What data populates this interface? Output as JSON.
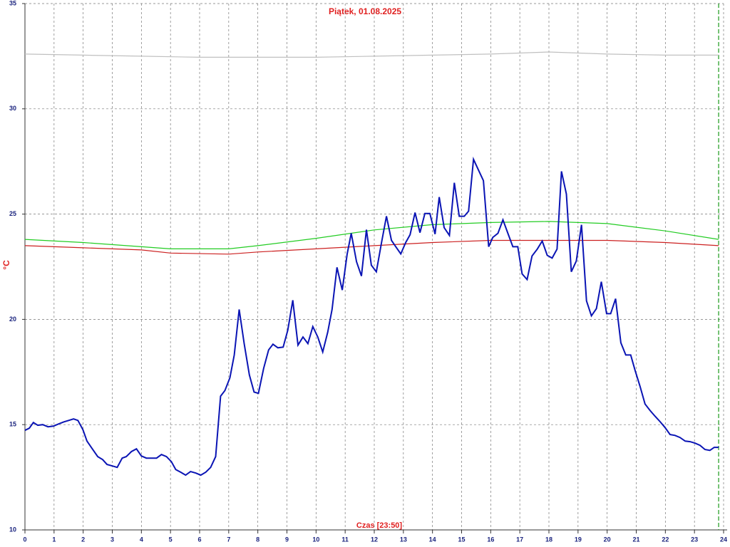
{
  "chart_data": {
    "type": "line",
    "title": "Piątek, 01.08.2025",
    "y_label": "°C",
    "x_label": "Czas [23:50]",
    "xlim": [
      0,
      24
    ],
    "xticks": [
      0,
      1,
      2,
      3,
      4,
      5,
      6,
      7,
      8,
      9,
      10,
      11,
      12,
      13,
      14,
      15,
      16,
      17,
      18,
      19,
      20,
      21,
      22,
      23,
      24
    ],
    "ylim": [
      10,
      35
    ],
    "yticks": [
      10,
      15,
      20,
      25,
      30,
      35
    ],
    "grid": true,
    "marker_x": 23.83,
    "marker_color": "#1a9a1a",
    "series": [
      {
        "color": "#c0c0c0",
        "x": [
          0,
          2,
          4,
          6,
          8,
          10,
          12,
          14,
          16,
          18,
          20,
          22,
          23.83
        ],
        "values": [
          32.6,
          32.55,
          32.5,
          32.45,
          32.45,
          32.45,
          32.5,
          32.55,
          32.6,
          32.7,
          32.6,
          32.55,
          32.55
        ]
      },
      {
        "color": "#22cc22",
        "x": [
          0,
          2,
          4,
          5,
          7,
          8,
          10,
          12,
          14,
          16,
          18,
          20,
          22,
          23.83
        ],
        "values": [
          23.8,
          23.65,
          23.45,
          23.35,
          23.35,
          23.5,
          23.85,
          24.25,
          24.5,
          24.6,
          24.65,
          24.55,
          24.2,
          23.8
        ]
      },
      {
        "color": "#cc2020",
        "x": [
          0,
          2,
          4,
          5,
          7,
          8,
          10,
          12,
          14,
          16,
          18,
          20,
          22,
          23.83
        ],
        "values": [
          23.5,
          23.4,
          23.3,
          23.15,
          23.1,
          23.2,
          23.35,
          23.5,
          23.65,
          23.75,
          23.75,
          23.75,
          23.65,
          23.5
        ]
      },
      {
        "color": "#0a14b4",
        "x": [
          0,
          0.15,
          0.29,
          0.44,
          0.61,
          0.79,
          0.98,
          1.15,
          1.33,
          1.5,
          1.67,
          1.82,
          1.99,
          2.13,
          2.33,
          2.5,
          2.67,
          2.82,
          2.99,
          3.17,
          3.34,
          3.48,
          3.66,
          3.83,
          4.0,
          4.17,
          4.32,
          4.52,
          4.69,
          4.86,
          5.03,
          5.18,
          5.35,
          5.52,
          5.69,
          5.87,
          6.04,
          6.21,
          6.38,
          6.55,
          6.72,
          6.87,
          7.04,
          7.19,
          7.36,
          7.53,
          7.71,
          7.87,
          8.02,
          8.2,
          8.37,
          8.52,
          8.69,
          8.87,
          9.03,
          9.2,
          9.38,
          9.55,
          9.72,
          9.89,
          10.06,
          10.23,
          10.4,
          10.55,
          10.72,
          10.9,
          11.07,
          11.21,
          11.39,
          11.56,
          11.73,
          11.9,
          12.07,
          12.25,
          12.42,
          12.59,
          12.74,
          12.91,
          13.08,
          13.23,
          13.4,
          13.57,
          13.74,
          13.91,
          14.09,
          14.23,
          14.4,
          14.58,
          14.75,
          14.92,
          15.09,
          15.24,
          15.41,
          15.58,
          15.75,
          15.93,
          16.07,
          16.25,
          16.42,
          16.59,
          16.76,
          16.93,
          17.08,
          17.25,
          17.42,
          17.6,
          17.77,
          17.94,
          18.11,
          18.28,
          18.43,
          18.6,
          18.77,
          18.94,
          19.12,
          19.29,
          19.46,
          19.63,
          19.8,
          19.98,
          20.12,
          20.29,
          20.47,
          20.64,
          20.81,
          20.96,
          21.13,
          21.3,
          21.47,
          21.64,
          21.82,
          21.99,
          22.16,
          22.33,
          22.5,
          22.68,
          22.85,
          23.02,
          23.19,
          23.36,
          23.53,
          23.68,
          23.83
        ],
        "values": [
          14.73,
          14.83,
          15.1,
          14.97,
          15.0,
          14.9,
          14.93,
          15.03,
          15.13,
          15.2,
          15.27,
          15.2,
          14.76,
          14.22,
          13.82,
          13.48,
          13.34,
          13.11,
          13.04,
          12.97,
          13.41,
          13.48,
          13.72,
          13.85,
          13.51,
          13.41,
          13.41,
          13.41,
          13.58,
          13.48,
          13.24,
          12.87,
          12.74,
          12.6,
          12.77,
          12.7,
          12.6,
          12.74,
          12.97,
          13.48,
          16.35,
          16.62,
          17.23,
          18.31,
          20.47,
          18.85,
          17.36,
          16.55,
          16.49,
          17.67,
          18.55,
          18.82,
          18.65,
          18.68,
          19.49,
          20.91,
          18.78,
          19.16,
          18.85,
          19.66,
          19.16,
          18.45,
          19.39,
          20.47,
          22.47,
          21.39,
          23.11,
          24.09,
          22.74,
          22.06,
          24.26,
          22.57,
          22.26,
          23.65,
          24.9,
          23.75,
          23.45,
          23.11,
          23.65,
          24.02,
          25.07,
          24.12,
          25.03,
          25.03,
          24.05,
          25.81,
          24.36,
          23.99,
          26.49,
          24.9,
          24.9,
          25.14,
          27.6,
          27.09,
          26.59,
          23.45,
          23.89,
          24.09,
          24.73,
          24.09,
          23.45,
          23.45,
          22.16,
          21.89,
          23.01,
          23.34,
          23.72,
          23.04,
          22.91,
          23.34,
          27.03,
          25.95,
          22.26,
          22.77,
          24.49,
          20.88,
          20.17,
          20.51,
          21.79,
          20.27,
          20.27,
          20.98,
          18.89,
          18.31,
          18.31,
          17.57,
          16.82,
          15.98,
          15.68,
          15.41,
          15.14,
          14.86,
          14.53,
          14.49,
          14.39,
          14.22,
          14.19,
          14.12,
          14.02,
          13.82,
          13.78,
          13.92,
          13.92
        ]
      }
    ]
  }
}
